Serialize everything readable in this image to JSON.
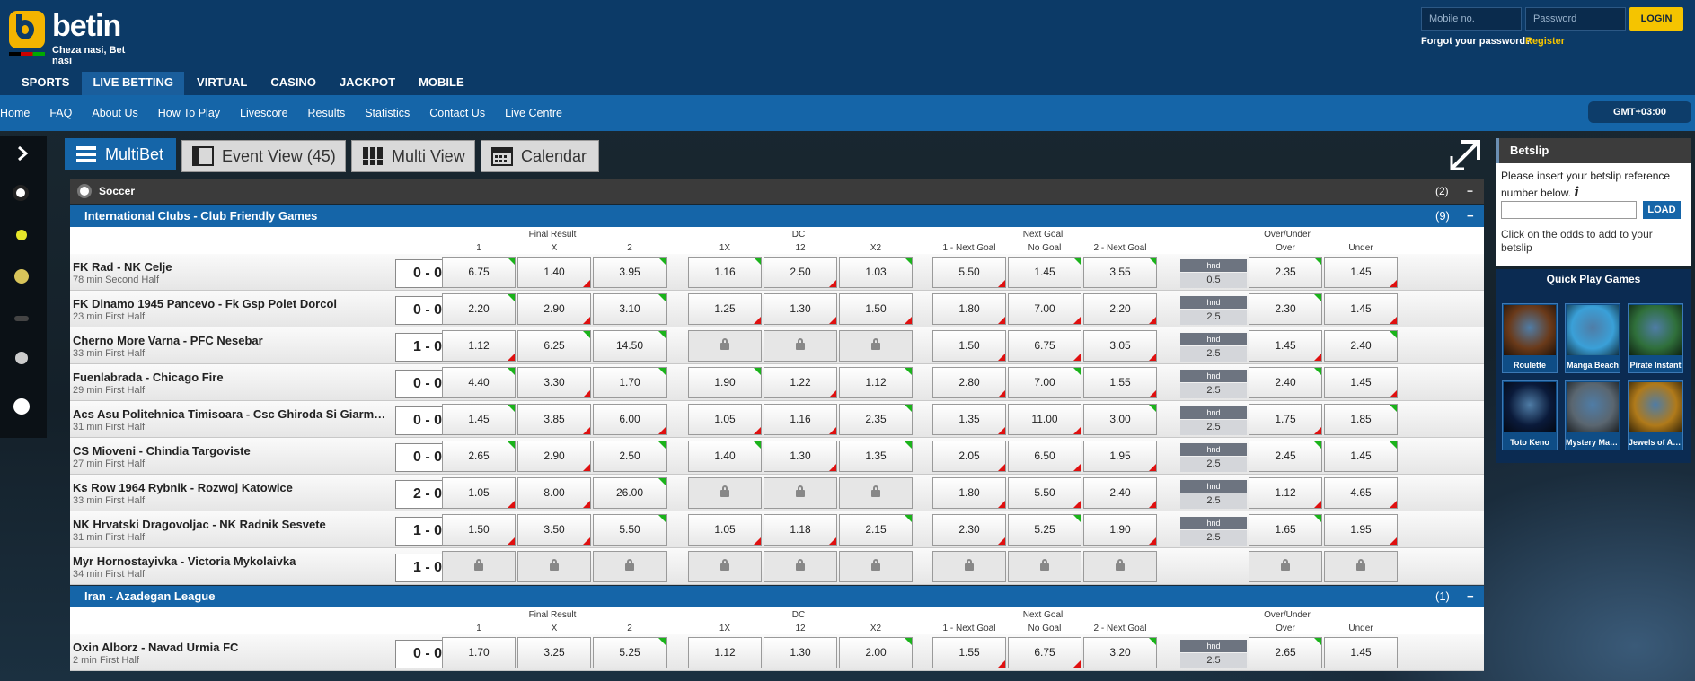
{
  "header": {
    "brand_word": "betin",
    "tagline": "Cheza nasi, Bet nasi",
    "mobile_placeholder": "Mobile no.",
    "password_placeholder": "Password",
    "login_label": "LOGIN",
    "forgot_label": "Forgot your password?",
    "register_label": "Register",
    "main_nav": [
      "SPORTS",
      "LIVE BETTING",
      "VIRTUAL",
      "CASINO",
      "JACKPOT",
      "MOBILE"
    ],
    "main_nav_active": "LIVE BETTING",
    "sub_nav": [
      "Home",
      "FAQ",
      "About Us",
      "How To Play",
      "Livescore",
      "Results",
      "Statistics",
      "Contact Us",
      "Live Centre"
    ],
    "timezone": "GMT+03:00"
  },
  "tabs": {
    "multibet": "MultiBet",
    "event_view": "Event View (45)",
    "multi_view": "Multi View",
    "calendar": "Calendar"
  },
  "sport": {
    "name": "Soccer",
    "count": "(2)",
    "toggle": "−"
  },
  "columns": {
    "groups": [
      "Final Result",
      "DC",
      "Next Goal",
      "Over/Under"
    ],
    "final_result": [
      "1",
      "X",
      "2"
    ],
    "dc": [
      "1X",
      "12",
      "X2"
    ],
    "next_goal": [
      "1 - Next Goal",
      "No Goal",
      "2 - Next Goal"
    ],
    "over_under": [
      "Over",
      "Under"
    ]
  },
  "leagues": [
    {
      "name": "International Clubs - Club Friendly Games",
      "count": "(9)",
      "toggle": "−",
      "matches": [
        {
          "teams": "FK Rad - NK Celje",
          "time": "78 min Second Half",
          "score": "0 - 0",
          "fr": [
            [
              "6.75",
              "up"
            ],
            [
              "1.40",
              "dn"
            ],
            [
              "3.95",
              "up"
            ]
          ],
          "dc": [
            [
              "1.16",
              "up"
            ],
            [
              "2.50",
              "dn"
            ],
            [
              "1.03",
              "up"
            ]
          ],
          "ng": [
            [
              "5.50",
              "dn"
            ],
            [
              "1.45",
              "up"
            ],
            [
              "3.55",
              "up"
            ]
          ],
          "hnd_label": "hnd",
          "hnd": "0.5",
          "ou": [
            [
              "2.35",
              "up"
            ],
            [
              "1.45",
              "dn"
            ]
          ]
        },
        {
          "teams": "FK Dinamo 1945 Pancevo - Fk Gsp Polet Dorcol",
          "time": "23 min First Half",
          "score": "0 - 0",
          "fr": [
            [
              "2.20",
              "up"
            ],
            [
              "2.90",
              "dn"
            ],
            [
              "3.10",
              "up"
            ]
          ],
          "dc": [
            [
              "1.25",
              "dn"
            ],
            [
              "1.30",
              "dn"
            ],
            [
              "1.50",
              "dn"
            ]
          ],
          "ng": [
            [
              "1.80",
              "dn"
            ],
            [
              "7.00",
              "dn"
            ],
            [
              "2.20",
              "dn"
            ]
          ],
          "hnd_label": "hnd",
          "hnd": "2.5",
          "ou": [
            [
              "2.30",
              "up"
            ],
            [
              "1.45",
              "dn"
            ]
          ]
        },
        {
          "teams": "Cherno More Varna - PFC Nesebar",
          "time": "33 min First Half",
          "score": "1 - 0",
          "fr": [
            [
              "1.12",
              "dn"
            ],
            [
              "6.25",
              "up"
            ],
            [
              "14.50",
              "up"
            ]
          ],
          "dc": [
            [
              "lock",
              ""
            ],
            [
              "lock",
              ""
            ],
            [
              "lock",
              ""
            ]
          ],
          "ng": [
            [
              "1.50",
              "dn"
            ],
            [
              "6.75",
              "dn"
            ],
            [
              "3.05",
              "dn"
            ]
          ],
          "hnd_label": "hnd",
          "hnd": "2.5",
          "ou": [
            [
              "1.45",
              "dn"
            ],
            [
              "2.40",
              "up"
            ]
          ]
        },
        {
          "teams": "Fuenlabrada - Chicago Fire",
          "time": "29 min First Half",
          "score": "0 - 0",
          "fr": [
            [
              "4.40",
              "up"
            ],
            [
              "3.30",
              "dn"
            ],
            [
              "1.70",
              "up"
            ]
          ],
          "dc": [
            [
              "1.90",
              "up"
            ],
            [
              "1.22",
              "dn"
            ],
            [
              "1.12",
              "up"
            ]
          ],
          "ng": [
            [
              "2.80",
              "dn"
            ],
            [
              "7.00",
              "up"
            ],
            [
              "1.55",
              "dn"
            ]
          ],
          "hnd_label": "hnd",
          "hnd": "2.5",
          "ou": [
            [
              "2.40",
              "up"
            ],
            [
              "1.45",
              "dn"
            ]
          ]
        },
        {
          "teams": "Acs Asu Politehnica Timisoara - Csc Ghiroda Si Giarmata Vii",
          "time": "31 min First Half",
          "score": "0 - 0",
          "fr": [
            [
              "1.45",
              "up"
            ],
            [
              "3.85",
              "dn"
            ],
            [
              "6.00",
              "dn"
            ]
          ],
          "dc": [
            [
              "1.05",
              "dn"
            ],
            [
              "1.16",
              "dn"
            ],
            [
              "2.35",
              "up"
            ]
          ],
          "ng": [
            [
              "1.35",
              "dn"
            ],
            [
              "11.00",
              "dn"
            ],
            [
              "3.00",
              "up"
            ]
          ],
          "hnd_label": "hnd",
          "hnd": "2.5",
          "ou": [
            [
              "1.75",
              "dn"
            ],
            [
              "1.85",
              "up"
            ]
          ]
        },
        {
          "teams": "CS Mioveni - Chindia Targoviste",
          "time": "27 min First Half",
          "score": "0 - 0",
          "fr": [
            [
              "2.65",
              "up"
            ],
            [
              "2.90",
              "dn"
            ],
            [
              "2.50",
              "up"
            ]
          ],
          "dc": [
            [
              "1.40",
              "up"
            ],
            [
              "1.30",
              "dn"
            ],
            [
              "1.35",
              "up"
            ]
          ],
          "ng": [
            [
              "2.05",
              "dn"
            ],
            [
              "6.50",
              "dn"
            ],
            [
              "1.95",
              "dn"
            ]
          ],
          "hnd_label": "hnd",
          "hnd": "2.5",
          "ou": [
            [
              "2.45",
              "up"
            ],
            [
              "1.45",
              "up"
            ]
          ]
        },
        {
          "teams": "Ks Row 1964 Rybnik - Rozwoj Katowice",
          "time": "33 min First Half",
          "score": "2 - 0",
          "fr": [
            [
              "1.05",
              "dn"
            ],
            [
              "8.00",
              "dn"
            ],
            [
              "26.00",
              "up"
            ]
          ],
          "dc": [
            [
              "lock",
              ""
            ],
            [
              "lock",
              ""
            ],
            [
              "lock",
              ""
            ]
          ],
          "ng": [
            [
              "1.80",
              "dn"
            ],
            [
              "5.50",
              "dn"
            ],
            [
              "2.40",
              "dn"
            ]
          ],
          "hnd_label": "hnd",
          "hnd": "2.5",
          "ou": [
            [
              "1.12",
              "dn"
            ],
            [
              "4.65",
              "dn"
            ]
          ]
        },
        {
          "teams": "NK Hrvatski Dragovoljac - NK Radnik Sesvete",
          "time": "31 min First Half",
          "score": "1 - 0",
          "fr": [
            [
              "1.50",
              "dn"
            ],
            [
              "3.50",
              "dn"
            ],
            [
              "5.50",
              "up"
            ]
          ],
          "dc": [
            [
              "1.05",
              "dn"
            ],
            [
              "1.18",
              "dn"
            ],
            [
              "2.15",
              "up"
            ]
          ],
          "ng": [
            [
              "2.30",
              "dn"
            ],
            [
              "5.25",
              "up"
            ],
            [
              "1.90",
              "dn"
            ]
          ],
          "hnd_label": "hnd",
          "hnd": "2.5",
          "ou": [
            [
              "1.65",
              "up"
            ],
            [
              "1.95",
              "dn"
            ]
          ]
        },
        {
          "teams": "Myr Hornostayivka - Victoria Mykolaivka",
          "time": "34 min First Half",
          "score": "1 - 0",
          "fr": [
            [
              "lock",
              ""
            ],
            [
              "lock",
              ""
            ],
            [
              "lock",
              ""
            ]
          ],
          "dc": [
            [
              "lock",
              ""
            ],
            [
              "lock",
              ""
            ],
            [
              "lock",
              ""
            ]
          ],
          "ng": [
            [
              "lock",
              ""
            ],
            [
              "lock",
              ""
            ],
            [
              "lock",
              ""
            ]
          ],
          "hnd_label": "",
          "hnd": "",
          "ou": [
            [
              "lock",
              ""
            ],
            [
              "lock",
              ""
            ]
          ]
        }
      ]
    },
    {
      "name": "Iran - Azadegan League",
      "count": "(1)",
      "toggle": "−",
      "matches": [
        {
          "teams": "Oxin Alborz - Navad Urmia FC",
          "time": "2 min First Half",
          "score": "0 - 0",
          "fr": [
            [
              "1.70",
              ""
            ],
            [
              "3.25",
              ""
            ],
            [
              "5.25",
              "up"
            ]
          ],
          "dc": [
            [
              "1.12",
              ""
            ],
            [
              "1.30",
              ""
            ],
            [
              "2.00",
              "up"
            ]
          ],
          "ng": [
            [
              "1.55",
              "dn"
            ],
            [
              "6.75",
              "dn"
            ],
            [
              "3.20",
              "up"
            ]
          ],
          "hnd_label": "hnd",
          "hnd": "2.5",
          "ou": [
            [
              "2.65",
              "up"
            ],
            [
              "1.45",
              ""
            ]
          ]
        }
      ]
    }
  ],
  "betslip": {
    "title": "Betslip",
    "message": "Please insert your betslip reference number below.",
    "info_glyph": "i",
    "load_label": "LOAD",
    "hint": "Click on the odds to add to your betslip"
  },
  "quick_play": {
    "title": "Quick Play Games",
    "games": [
      {
        "name": "Roulette",
        "color": "#6a3a1a"
      },
      {
        "name": "Manga Beach",
        "color": "#3aa0d8"
      },
      {
        "name": "Pirate Instant",
        "color": "#2f6f3a"
      },
      {
        "name": "Toto Keno",
        "color": "#0a1a3a"
      },
      {
        "name": "Mystery Man...",
        "color": "#5a6670"
      },
      {
        "name": "Jewels of An...",
        "color": "#b07a1a"
      }
    ]
  },
  "colors": {
    "brand_blue": "#1565a8",
    "dark_blue": "#0c3a67",
    "accent": "#f5c400",
    "odds_up": "#1bb31b",
    "odds_down": "#e01010"
  }
}
